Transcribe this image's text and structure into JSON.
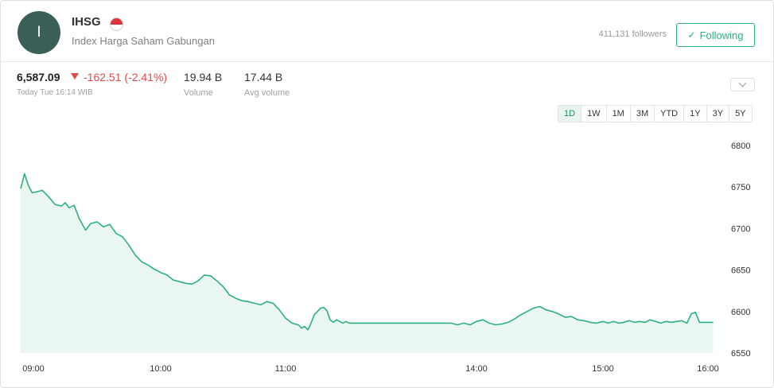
{
  "header": {
    "avatar_letter": "I",
    "symbol": "IHSG",
    "name": "Index Harga Saham Gabungan",
    "followers": "411,131 followers",
    "follow_label": "Following"
  },
  "quote": {
    "price": "6,587.09",
    "change": "-162.51 (-2.41%)",
    "time": "Today Tue 16:14 WIB",
    "volume_value": "19.94 B",
    "volume_label": "Volume",
    "avg_volume_value": "17.44 B",
    "avg_volume_label": "Avg volume"
  },
  "ranges": [
    "1D",
    "1W",
    "1M",
    "3M",
    "YTD",
    "1Y",
    "3Y",
    "5Y"
  ],
  "active_range": "1D",
  "colors": {
    "line": "#2bb17e",
    "fill": "#e9f7f0",
    "down": "#e34a4a"
  },
  "chart_data": {
    "type": "area",
    "y_ticks": [
      6800,
      6750,
      6700,
      6650,
      6600,
      6550
    ],
    "ylim": [
      6550,
      6800
    ],
    "x_ticks": [
      "09:00",
      "10:00",
      "11:00",
      "14:00",
      "15:00",
      "16:00"
    ],
    "x_tick_positions": [
      9.0,
      10.0,
      11.0,
      14.0,
      15.0,
      16.0
    ],
    "x": [
      8.9,
      8.93,
      8.96,
      8.99,
      9.02,
      9.07,
      9.12,
      9.17,
      9.22,
      9.25,
      9.28,
      9.32,
      9.36,
      9.41,
      9.45,
      9.5,
      9.55,
      9.6,
      9.65,
      9.7,
      9.75,
      9.8,
      9.85,
      9.9,
      9.95,
      10.0,
      10.05,
      10.1,
      10.15,
      10.2,
      10.25,
      10.3,
      10.35,
      10.4,
      10.45,
      10.5,
      10.55,
      10.6,
      10.65,
      10.7,
      10.75,
      10.8,
      10.85,
      10.9,
      10.95,
      11.0,
      11.05,
      11.1,
      11.15,
      11.2,
      11.25,
      11.3,
      11.35,
      11.4,
      11.45,
      11.5,
      11.55,
      11.6,
      11.65,
      11.7,
      11.75,
      11.8,
      11.85,
      11.9,
      11.95,
      12.0,
      13.6,
      13.7,
      13.8,
      13.9,
      14.0,
      14.05,
      14.1,
      14.15,
      14.2,
      14.25,
      14.3,
      14.35,
      14.4,
      14.45,
      14.5,
      14.55,
      14.6,
      14.65,
      14.7,
      14.75,
      14.8,
      14.85,
      14.9,
      14.95,
      15.0,
      15.05,
      15.1,
      15.15,
      15.2,
      15.25,
      15.3,
      15.35,
      15.4,
      15.45,
      15.5,
      15.55,
      15.6,
      15.65,
      15.7,
      15.75,
      15.8,
      15.84,
      15.88,
      15.92,
      15.96,
      16.0,
      16.05
    ],
    "y": [
      6748,
      6766,
      6752,
      6743,
      6744,
      6746,
      6738,
      6729,
      6727,
      6731,
      6725,
      6728,
      6712,
      6698,
      6706,
      6708,
      6702,
      6705,
      6694,
      6690,
      6680,
      6668,
      6660,
      6656,
      6651,
      6647,
      6644,
      6638,
      6636,
      6634,
      6633,
      6637,
      6644,
      6643,
      6637,
      6630,
      6620,
      6616,
      6613,
      6612,
      6610,
      6608,
      6612,
      6610,
      6602,
      6592,
      6589,
      6586,
      6585,
      6584,
      6580,
      6582,
      6578,
      6586,
      6596,
      6600,
      6604,
      6605,
      6601,
      6590,
      6587,
      6590,
      6588,
      6586,
      6588,
      6586,
      6586,
      6584,
      6586,
      6584,
      6588,
      6590,
      6586,
      6584,
      6585,
      6587,
      6591,
      6596,
      6600,
      6604,
      6606,
      6602,
      6600,
      6597,
      6593,
      6594,
      6590,
      6589,
      6587,
      6586,
      6588,
      6586,
      6588,
      6586,
      6587,
      6589,
      6587,
      6588,
      6587,
      6590,
      6588,
      6586,
      6588,
      6587,
      6588,
      6589,
      6586,
      6597,
      6599,
      6587,
      6587,
      6587,
      6587
    ],
    "xlim": [
      8.9,
      16.1
    ]
  }
}
